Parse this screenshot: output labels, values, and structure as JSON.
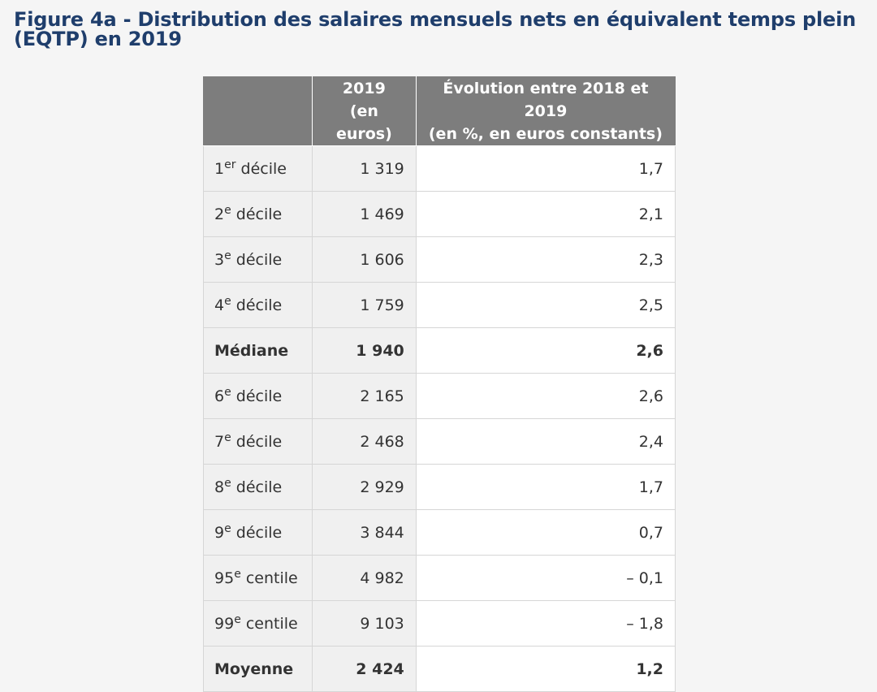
{
  "title": "Figure 4a - Distribution des salaires mensuels nets en équivalent temps plein (EQTP) en 2019",
  "table": {
    "headers": {
      "label": "",
      "col1_line1": "2019",
      "col1_line2": "(en euros)",
      "col2_line1": "Évolution entre 2018 et 2019",
      "col2_line2": "(en %, en euros constants)"
    },
    "rows": [
      {
        "num": "1",
        "sup": "er",
        "rest": "décile",
        "value": "1 319",
        "evolution": "1,7",
        "bold": false
      },
      {
        "num": "2",
        "sup": "e",
        "rest": "décile",
        "value": "1 469",
        "evolution": "2,1",
        "bold": false
      },
      {
        "num": "3",
        "sup": "e",
        "rest": "décile",
        "value": "1 606",
        "evolution": "2,3",
        "bold": false
      },
      {
        "num": "4",
        "sup": "e",
        "rest": "décile",
        "value": "1 759",
        "evolution": "2,5",
        "bold": false
      },
      {
        "num": "Médiane",
        "sup": "",
        "rest": "",
        "value": "1 940",
        "evolution": "2,6",
        "bold": true
      },
      {
        "num": "6",
        "sup": "e",
        "rest": "décile",
        "value": "2 165",
        "evolution": "2,6",
        "bold": false
      },
      {
        "num": "7",
        "sup": "e",
        "rest": "décile",
        "value": "2 468",
        "evolution": "2,4",
        "bold": false
      },
      {
        "num": "8",
        "sup": "e",
        "rest": "décile",
        "value": "2 929",
        "evolution": "1,7",
        "bold": false
      },
      {
        "num": "9",
        "sup": "e",
        "rest": "décile",
        "value": "3 844",
        "evolution": "0,7",
        "bold": false
      },
      {
        "num": "95",
        "sup": "e",
        "rest": "centile",
        "value": "4 982",
        "evolution": "– 0,1",
        "bold": false
      },
      {
        "num": "99",
        "sup": "e",
        "rest": "centile",
        "value": "9 103",
        "evolution": "– 1,8",
        "bold": false
      },
      {
        "num": "Moyenne",
        "sup": "",
        "rest": "",
        "value": "2 424",
        "evolution": "1,2",
        "bold": true
      }
    ]
  },
  "colors": {
    "title": "#1f3e6c",
    "header_bg": "#7d7d7d",
    "shaded_cell": "#f0f0f0",
    "page_bg": "#f5f5f5"
  }
}
